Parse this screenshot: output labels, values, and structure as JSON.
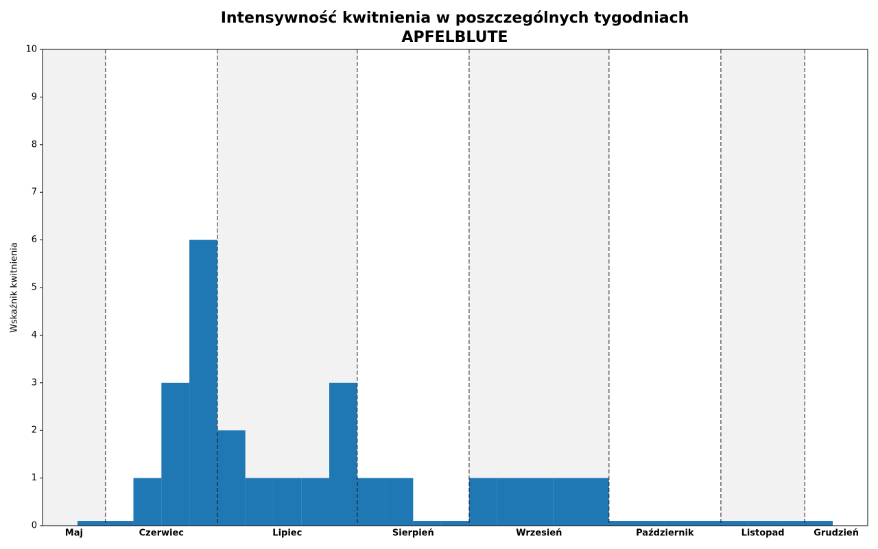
{
  "chart_data": {
    "type": "bar",
    "title": "Intensywność kwitnienia w poszczególnych tygodniach",
    "subtitle": "APFELBLUTE",
    "y_label": "Wskaźnik kwitnienia",
    "x": [
      0,
      1,
      2,
      3,
      4,
      5,
      6,
      7,
      8,
      9,
      10,
      11,
      12,
      13,
      14,
      15,
      16,
      17,
      18,
      19,
      20,
      21,
      22,
      23,
      24,
      25,
      26
    ],
    "values": [
      0.1,
      0.1,
      1,
      3,
      6,
      2,
      1,
      1,
      1,
      3,
      1,
      1,
      0.1,
      0.1,
      1,
      1,
      1,
      1,
      1,
      0.1,
      0.1,
      0.1,
      0.1,
      0.1,
      0.1,
      0.1,
      0.1
    ],
    "color": "#1f77b4",
    "xlim": [
      -1.75,
      27.75
    ],
    "ylim": [
      0,
      10
    ],
    "yticks": [
      0,
      1,
      2,
      3,
      4,
      5,
      6,
      7,
      8,
      9,
      10
    ],
    "months": [
      {
        "name": "Maj",
        "start": -1.75,
        "end": 0.5,
        "shaded": true
      },
      {
        "name": "Czerwiec",
        "start": 0.5,
        "end": 4.5,
        "shaded": false
      },
      {
        "name": "Lipiec",
        "start": 4.5,
        "end": 9.5,
        "shaded": true
      },
      {
        "name": "Sierpień",
        "start": 9.5,
        "end": 13.5,
        "shaded": false
      },
      {
        "name": "Wrzesień",
        "start": 13.5,
        "end": 18.5,
        "shaded": true
      },
      {
        "name": "Październik",
        "start": 18.5,
        "end": 22.5,
        "shaded": false
      },
      {
        "name": "Listopad",
        "start": 22.5,
        "end": 25.5,
        "shaded": true
      },
      {
        "name": "Grudzień",
        "start": 25.5,
        "end": 27.75,
        "shaded": false
      }
    ]
  }
}
